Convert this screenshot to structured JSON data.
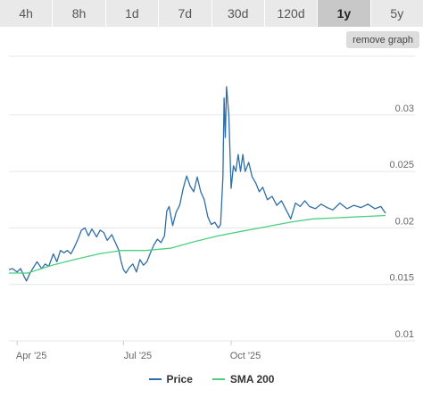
{
  "range_tabs": [
    {
      "label": "4h",
      "active": false
    },
    {
      "label": "8h",
      "active": false
    },
    {
      "label": "1d",
      "active": false
    },
    {
      "label": "7d",
      "active": false
    },
    {
      "label": "30d",
      "active": false
    },
    {
      "label": "120d",
      "active": false
    },
    {
      "label": "1y",
      "active": true
    },
    {
      "label": "5y",
      "active": false
    }
  ],
  "remove_graph_label": "remove graph",
  "colors": {
    "price": "#2f6ea6",
    "sma": "#4cd080",
    "grid": "#e6e6e6",
    "axis_text": "#666666"
  },
  "chart_data": {
    "type": "line",
    "title": "",
    "xlabel": "",
    "ylabel": "",
    "x_ticks": [
      {
        "label": "Apr '25",
        "date": "2025-04-01"
      },
      {
        "label": "Jul '25",
        "date": "2025-07-01"
      },
      {
        "label": "Oct '25",
        "date": "2025-10-01"
      }
    ],
    "y_ticks": [
      0.01,
      0.015,
      0.02,
      0.025,
      0.03
    ],
    "y_tick_labels": [
      "0.01",
      "0.015",
      "0.02",
      "0.025",
      "0.03"
    ],
    "ylim": [
      0.01,
      0.0352
    ],
    "xlim": [
      "2025-03-25",
      "2026-02-10"
    ],
    "grid": true,
    "legend_position": "bottom-center",
    "series": [
      {
        "name": "Price",
        "points": [
          [
            "2025-03-25",
            0.0163
          ],
          [
            "2025-03-28",
            0.0164
          ],
          [
            "2025-04-01",
            0.0161
          ],
          [
            "2025-04-04",
            0.0164
          ],
          [
            "2025-04-07",
            0.0157
          ],
          [
            "2025-04-09",
            0.0153
          ],
          [
            "2025-04-12",
            0.016
          ],
          [
            "2025-04-15",
            0.0165
          ],
          [
            "2025-04-18",
            0.017
          ],
          [
            "2025-04-22",
            0.0164
          ],
          [
            "2025-04-25",
            0.0168
          ],
          [
            "2025-04-28",
            0.0166
          ],
          [
            "2025-05-02",
            0.0177
          ],
          [
            "2025-05-05",
            0.017
          ],
          [
            "2025-05-08",
            0.018
          ],
          [
            "2025-05-11",
            0.0178
          ],
          [
            "2025-05-14",
            0.018
          ],
          [
            "2025-05-17",
            0.0177
          ],
          [
            "2025-05-20",
            0.0183
          ],
          [
            "2025-05-23",
            0.019
          ],
          [
            "2025-05-26",
            0.0198
          ],
          [
            "2025-05-29",
            0.02
          ],
          [
            "2025-06-01",
            0.0193
          ],
          [
            "2025-06-04",
            0.0199
          ],
          [
            "2025-06-08",
            0.0192
          ],
          [
            "2025-06-11",
            0.0198
          ],
          [
            "2025-06-14",
            0.0196
          ],
          [
            "2025-06-17",
            0.0189
          ],
          [
            "2025-06-21",
            0.0194
          ],
          [
            "2025-06-24",
            0.0187
          ],
          [
            "2025-06-27",
            0.018
          ],
          [
            "2025-06-29",
            0.017
          ],
          [
            "2025-07-01",
            0.0163
          ],
          [
            "2025-07-03",
            0.016
          ],
          [
            "2025-07-06",
            0.0165
          ],
          [
            "2025-07-09",
            0.0168
          ],
          [
            "2025-07-12",
            0.0161
          ],
          [
            "2025-07-15",
            0.0172
          ],
          [
            "2025-07-18",
            0.0167
          ],
          [
            "2025-07-21",
            0.017
          ],
          [
            "2025-07-24",
            0.0178
          ],
          [
            "2025-07-27",
            0.0185
          ],
          [
            "2025-07-30",
            0.019
          ],
          [
            "2025-08-02",
            0.0187
          ],
          [
            "2025-08-05",
            0.0193
          ],
          [
            "2025-08-07",
            0.0215
          ],
          [
            "2025-08-09",
            0.0219
          ],
          [
            "2025-08-12",
            0.0202
          ],
          [
            "2025-08-15",
            0.0214
          ],
          [
            "2025-08-18",
            0.022
          ],
          [
            "2025-08-21",
            0.0235
          ],
          [
            "2025-08-24",
            0.0246
          ],
          [
            "2025-08-27",
            0.0237
          ],
          [
            "2025-08-30",
            0.0232
          ],
          [
            "2025-09-02",
            0.0245
          ],
          [
            "2025-09-05",
            0.0232
          ],
          [
            "2025-09-08",
            0.0225
          ],
          [
            "2025-09-11",
            0.021
          ],
          [
            "2025-09-14",
            0.0203
          ],
          [
            "2025-09-17",
            0.0205
          ],
          [
            "2025-09-20",
            0.02
          ],
          [
            "2025-09-22",
            0.0203
          ],
          [
            "2025-09-24",
            0.0245
          ],
          [
            "2025-09-25",
            0.0315
          ],
          [
            "2025-09-26",
            0.028
          ],
          [
            "2025-09-27",
            0.0325
          ],
          [
            "2025-09-29",
            0.03
          ],
          [
            "2025-10-01",
            0.0235
          ],
          [
            "2025-10-03",
            0.0255
          ],
          [
            "2025-10-05",
            0.025
          ],
          [
            "2025-10-07",
            0.0265
          ],
          [
            "2025-10-09",
            0.025
          ],
          [
            "2025-10-11",
            0.0265
          ],
          [
            "2025-10-13",
            0.025
          ],
          [
            "2025-10-16",
            0.0258
          ],
          [
            "2025-10-19",
            0.0245
          ],
          [
            "2025-10-22",
            0.024
          ],
          [
            "2025-10-25",
            0.0232
          ],
          [
            "2025-10-28",
            0.0236
          ],
          [
            "2025-11-01",
            0.0225
          ],
          [
            "2025-11-05",
            0.0228
          ],
          [
            "2025-11-09",
            0.022
          ],
          [
            "2025-11-13",
            0.0224
          ],
          [
            "2025-11-17",
            0.0216
          ],
          [
            "2025-11-21",
            0.0208
          ],
          [
            "2025-11-25",
            0.0222
          ],
          [
            "2025-11-29",
            0.0219
          ],
          [
            "2025-12-03",
            0.0224
          ],
          [
            "2025-12-07",
            0.0219
          ],
          [
            "2025-12-12",
            0.0217
          ],
          [
            "2025-12-17",
            0.0221
          ],
          [
            "2025-12-22",
            0.0218
          ],
          [
            "2025-12-27",
            0.0216
          ],
          [
            "2026-01-02",
            0.0222
          ],
          [
            "2026-01-08",
            0.0217
          ],
          [
            "2026-01-14",
            0.022
          ],
          [
            "2026-01-20",
            0.0218
          ],
          [
            "2026-01-26",
            0.0221
          ],
          [
            "2026-02-01",
            0.0217
          ],
          [
            "2026-02-06",
            0.0219
          ],
          [
            "2026-02-10",
            0.0213
          ]
        ]
      },
      {
        "name": "SMA 200",
        "points": [
          [
            "2025-03-25",
            0.016
          ],
          [
            "2025-04-10",
            0.016
          ],
          [
            "2025-05-01",
            0.0167
          ],
          [
            "2025-05-20",
            0.0172
          ],
          [
            "2025-06-10",
            0.0177
          ],
          [
            "2025-06-29",
            0.018
          ],
          [
            "2025-07-20",
            0.018
          ],
          [
            "2025-08-10",
            0.0182
          ],
          [
            "2025-08-31",
            0.0188
          ],
          [
            "2025-09-20",
            0.0193
          ],
          [
            "2025-10-10",
            0.0197
          ],
          [
            "2025-10-31",
            0.0201
          ],
          [
            "2025-11-20",
            0.0205
          ],
          [
            "2025-12-10",
            0.0208
          ],
          [
            "2026-01-01",
            0.0209
          ],
          [
            "2026-02-10",
            0.0211
          ]
        ]
      }
    ]
  }
}
